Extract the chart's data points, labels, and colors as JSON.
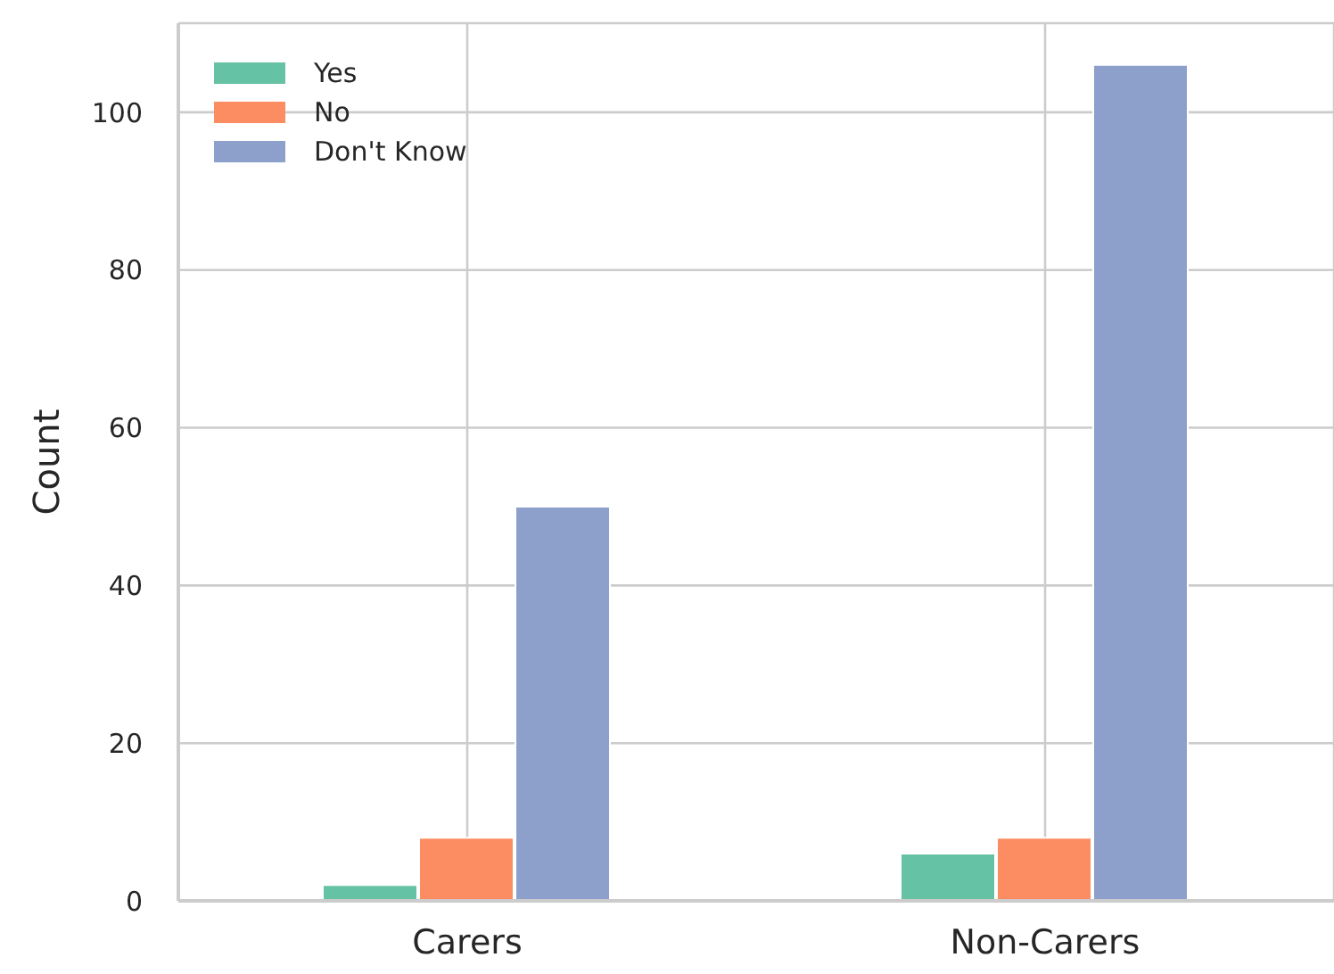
{
  "chart_data": {
    "type": "bar",
    "ylabel": "Count",
    "categories": [
      "Carers",
      "Non-Carers"
    ],
    "series": [
      {
        "name": "Yes",
        "color": "#66c2a5",
        "values": [
          2,
          6
        ]
      },
      {
        "name": "No",
        "color": "#fc8d62",
        "values": [
          8,
          8
        ]
      },
      {
        "name": "Don't Know",
        "color": "#8da0cb",
        "values": [
          50,
          106
        ]
      }
    ],
    "ylim": [
      0,
      111.3
    ],
    "yticks": [
      0,
      20,
      40,
      60,
      80,
      100
    ],
    "grid": true,
    "legend": "top left"
  }
}
